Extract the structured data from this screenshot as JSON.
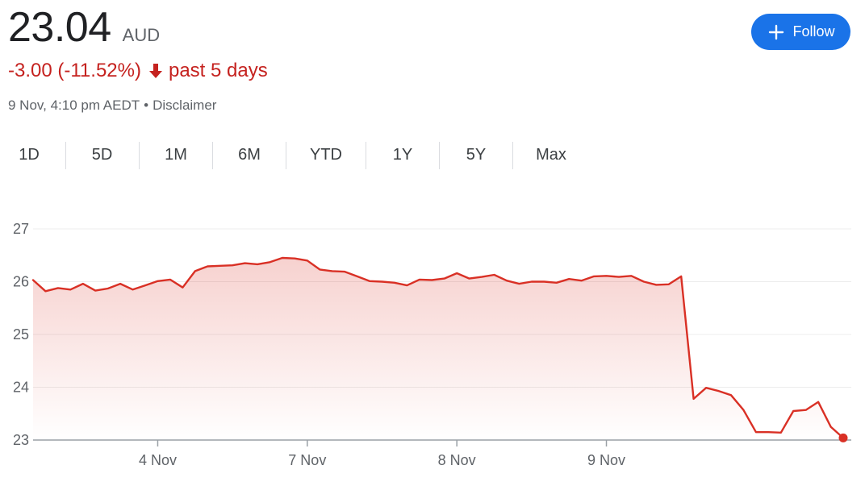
{
  "quote": {
    "price": "23.04",
    "currency": "AUD",
    "change": "-3.00 (-11.52%)",
    "period": "past 5 days",
    "timestamp": "9 Nov, 4:10 pm AEDT",
    "separator": "•",
    "disclaimer": "Disclaimer",
    "down_color": "#c5221f"
  },
  "follow_button": {
    "label": "Follow",
    "icon": "plus-icon",
    "color": "#1a73e8"
  },
  "tabs": [
    {
      "label": "1D",
      "active": false
    },
    {
      "label": "5D",
      "active": true
    },
    {
      "label": "1M",
      "active": false
    },
    {
      "label": "6M",
      "active": false
    },
    {
      "label": "YTD",
      "active": false
    },
    {
      "label": "1Y",
      "active": false
    },
    {
      "label": "5Y",
      "active": false
    },
    {
      "label": "Max",
      "active": false
    }
  ],
  "chart_data": {
    "type": "area",
    "title": "",
    "xlabel": "",
    "ylabel": "",
    "ylim": [
      23,
      27
    ],
    "y_ticks": [
      "23",
      "24",
      "25",
      "26",
      "27"
    ],
    "x_tick_labels": [
      {
        "label": "4 Nov",
        "index": 10
      },
      {
        "label": "7 Nov",
        "index": 22
      },
      {
        "label": "8 Nov",
        "index": 34
      },
      {
        "label": "9 Nov",
        "index": 46
      }
    ],
    "grid": true,
    "line_color": "#d93025",
    "values": [
      26.03,
      25.82,
      25.88,
      25.85,
      25.96,
      25.83,
      25.87,
      25.96,
      25.85,
      25.93,
      26.01,
      26.04,
      25.89,
      26.2,
      26.29,
      26.3,
      26.31,
      26.35,
      26.33,
      26.37,
      26.45,
      26.44,
      26.4,
      26.23,
      26.2,
      26.19,
      26.1,
      26.01,
      26.0,
      25.98,
      25.93,
      26.04,
      26.03,
      26.06,
      26.16,
      26.06,
      26.09,
      26.13,
      26.02,
      25.96,
      26.0,
      26.0,
      25.98,
      26.05,
      26.02,
      26.1,
      26.11,
      26.09,
      26.11,
      26.0,
      25.94,
      25.95,
      26.1,
      23.78,
      23.99,
      23.93,
      23.85,
      23.57,
      23.15,
      23.15,
      23.14,
      23.55,
      23.57,
      23.72,
      23.25,
      23.04
    ]
  }
}
